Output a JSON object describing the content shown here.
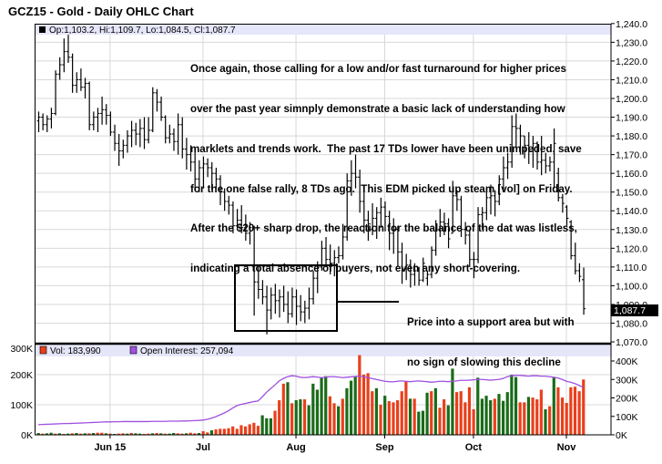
{
  "title": "GCZ15 - Gold - Daily OHLC Chart",
  "price_header": {
    "legend": "Op:1,103.2, Hi:1,109.7, Lo:1,084.5, Cl:1,087.7"
  },
  "volume_header": {
    "vol_legend": "Vol: 183,990",
    "oi_legend": "Open Interest: 257,094"
  },
  "last_price_label": "1,087.7",
  "annotation": {
    "lines": [
      "Once again, those calling for a low and/or fast turnaround for higher prices",
      "over the past year simnply demonstrate a basic lack of understanding how",
      "marklets and trends work.  The past 17 TDs lower have been unimpeded, save",
      "for the one false rally, 8 TDs ago.  This EDM picked up steam [vol] on Friday.",
      "After the $20+ sharp drop, the reaction for the balance of the dat was listless,",
      "indicating a total absence of buyers, not even any short-covering."
    ],
    "callout_lines": [
      "Price into a support area but with",
      "no sign of slowing this decline"
    ]
  },
  "colors": {
    "up_volume": "#1a6b1a",
    "down_volume": "#e8401c",
    "open_interest": "#a050e0",
    "header_bg": "#e6e6fa",
    "grid": "#d8d8d8"
  },
  "chart_data": [
    {
      "type": "ohlc",
      "ylim": [
        1070,
        1240
      ],
      "y_ticks": [
        "1,240.0",
        "1,230.0",
        "1,220.0",
        "1,210.0",
        "1,200.0",
        "1,190.0",
        "1,180.0",
        "1,170.0",
        "1,160.0",
        "1,150.0",
        "1,140.0",
        "1,130.0",
        "1,120.0",
        "1,110.0",
        "1,100.0",
        "1,090.0",
        "1,080.0",
        "1,070.0"
      ],
      "x_ticks": [
        {
          "label": "Jun 15",
          "bar_index": 17
        },
        {
          "label": "Jul",
          "bar_index": 39
        },
        {
          "label": "Aug",
          "bar_index": 61
        },
        {
          "label": "Sep",
          "bar_index": 82
        },
        {
          "label": "Oct",
          "bar_index": 103
        },
        {
          "label": "Nov",
          "bar_index": 125
        }
      ],
      "grid": true,
      "ohlc": [
        [
          1188,
          1193,
          1182,
          1190
        ],
        [
          1190,
          1192,
          1183,
          1186
        ],
        [
          1186,
          1191,
          1182,
          1189
        ],
        [
          1189,
          1195,
          1184,
          1192
        ],
        [
          1192,
          1215,
          1191,
          1213
        ],
        [
          1213,
          1222,
          1210,
          1218
        ],
        [
          1218,
          1232,
          1214,
          1225
        ],
        [
          1225,
          1234,
          1219,
          1222
        ],
        [
          1222,
          1224,
          1203,
          1207
        ],
        [
          1207,
          1214,
          1203,
          1210
        ],
        [
          1210,
          1216,
          1204,
          1206
        ],
        [
          1206,
          1211,
          1200,
          1208
        ],
        [
          1208,
          1209,
          1183,
          1186
        ],
        [
          1186,
          1193,
          1183,
          1190
        ],
        [
          1190,
          1195,
          1182,
          1192
        ],
        [
          1192,
          1201,
          1186,
          1194
        ],
        [
          1194,
          1197,
          1186,
          1191
        ],
        [
          1191,
          1193,
          1180,
          1182
        ],
        [
          1182,
          1186,
          1172,
          1176
        ],
        [
          1176,
          1181,
          1164,
          1172
        ],
        [
          1172,
          1178,
          1168,
          1175
        ],
        [
          1175,
          1183,
          1171,
          1180
        ],
        [
          1180,
          1188,
          1174,
          1183
        ],
        [
          1183,
          1187,
          1175,
          1181
        ],
        [
          1181,
          1189,
          1174,
          1184
        ],
        [
          1184,
          1190,
          1173,
          1178
        ],
        [
          1178,
          1190,
          1176,
          1183
        ],
        [
          1183,
          1206,
          1182,
          1203
        ],
        [
          1203,
          1205,
          1193,
          1198
        ],
        [
          1198,
          1201,
          1188,
          1190
        ],
        [
          1190,
          1191,
          1176,
          1179
        ],
        [
          1179,
          1186,
          1176,
          1181
        ],
        [
          1181,
          1184,
          1172,
          1177
        ],
        [
          1177,
          1192,
          1170,
          1186
        ],
        [
          1186,
          1190,
          1168,
          1173
        ],
        [
          1173,
          1179,
          1162,
          1170
        ],
        [
          1170,
          1175,
          1161,
          1166
        ],
        [
          1166,
          1172,
          1152,
          1157
        ],
        [
          1157,
          1167,
          1150,
          1163
        ],
        [
          1163,
          1169,
          1152,
          1165
        ],
        [
          1165,
          1168,
          1158,
          1163
        ],
        [
          1163,
          1166,
          1151,
          1160
        ],
        [
          1160,
          1163,
          1152,
          1157
        ],
        [
          1157,
          1159,
          1143,
          1150
        ],
        [
          1150,
          1152,
          1140,
          1145
        ],
        [
          1145,
          1148,
          1138,
          1143
        ],
        [
          1143,
          1145,
          1128,
          1132
        ],
        [
          1132,
          1141,
          1130,
          1135
        ],
        [
          1135,
          1143,
          1128,
          1131
        ],
        [
          1131,
          1138,
          1124,
          1128
        ],
        [
          1128,
          1134,
          1122,
          1131
        ],
        [
          1131,
          1132,
          1084,
          1102
        ],
        [
          1102,
          1110,
          1093,
          1098
        ],
        [
          1098,
          1103,
          1090,
          1094
        ],
        [
          1094,
          1100,
          1074,
          1087
        ],
        [
          1087,
          1099,
          1082,
          1095
        ],
        [
          1095,
          1101,
          1085,
          1092
        ],
        [
          1092,
          1098,
          1083,
          1094
        ],
        [
          1094,
          1100,
          1086,
          1090
        ],
        [
          1090,
          1097,
          1080,
          1085
        ],
        [
          1085,
          1099,
          1083,
          1094
        ],
        [
          1094,
          1098,
          1079,
          1089
        ],
        [
          1089,
          1095,
          1081,
          1086
        ],
        [
          1086,
          1092,
          1080,
          1088
        ],
        [
          1088,
          1099,
          1082,
          1093
        ],
        [
          1093,
          1108,
          1090,
          1104
        ],
        [
          1104,
          1113,
          1096,
          1110
        ],
        [
          1110,
          1124,
          1108,
          1120
        ],
        [
          1120,
          1126,
          1110,
          1114
        ],
        [
          1114,
          1122,
          1106,
          1112
        ],
        [
          1112,
          1119,
          1105,
          1115
        ],
        [
          1115,
          1121,
          1112,
          1116
        ],
        [
          1116,
          1133,
          1114,
          1126
        ],
        [
          1126,
          1160,
          1124,
          1156
        ],
        [
          1156,
          1167,
          1148,
          1160
        ],
        [
          1160,
          1170,
          1152,
          1158
        ],
        [
          1158,
          1162,
          1139,
          1145
        ],
        [
          1145,
          1150,
          1128,
          1135
        ],
        [
          1135,
          1140,
          1124,
          1130
        ],
        [
          1130,
          1144,
          1127,
          1136
        ],
        [
          1136,
          1142,
          1125,
          1139
        ],
        [
          1139,
          1147,
          1131,
          1142
        ],
        [
          1142,
          1145,
          1129,
          1137
        ],
        [
          1137,
          1140,
          1119,
          1128
        ],
        [
          1128,
          1136,
          1117,
          1130
        ],
        [
          1130,
          1132,
          1110,
          1118
        ],
        [
          1118,
          1123,
          1101,
          1109
        ],
        [
          1109,
          1117,
          1103,
          1111
        ],
        [
          1111,
          1114,
          1099,
          1106
        ],
        [
          1106,
          1112,
          1100,
          1108
        ],
        [
          1108,
          1110,
          1100,
          1103
        ],
        [
          1103,
          1115,
          1102,
          1112
        ],
        [
          1104,
          1108,
          1100,
          1106
        ],
        [
          1106,
          1121,
          1104,
          1119
        ],
        [
          1119,
          1135,
          1116,
          1130
        ],
        [
          1130,
          1141,
          1126,
          1134
        ],
        [
          1134,
          1139,
          1127,
          1133
        ],
        [
          1133,
          1136,
          1120,
          1125
        ],
        [
          1128,
          1156,
          1128,
          1148
        ],
        [
          1148,
          1151,
          1140,
          1146
        ],
        [
          1146,
          1148,
          1126,
          1130
        ],
        [
          1130,
          1134,
          1122,
          1127
        ],
        [
          1127,
          1130,
          1110,
          1114
        ],
        [
          1114,
          1118,
          1104,
          1114
        ],
        [
          1114,
          1142,
          1112,
          1138
        ],
        [
          1138,
          1142,
          1130,
          1139
        ],
        [
          1139,
          1152,
          1135,
          1147
        ],
        [
          1147,
          1154,
          1138,
          1148
        ],
        [
          1148,
          1151,
          1137,
          1145
        ],
        [
          1145,
          1159,
          1143,
          1157
        ],
        [
          1157,
          1169,
          1151,
          1163
        ],
        [
          1163,
          1171,
          1157,
          1166
        ],
        [
          1166,
          1191,
          1163,
          1185
        ],
        [
          1185,
          1192,
          1174,
          1184
        ],
        [
          1184,
          1186,
          1170,
          1180
        ],
        [
          1180,
          1180,
          1168,
          1175
        ],
        [
          1175,
          1182,
          1165,
          1172
        ],
        [
          1172,
          1180,
          1163,
          1176
        ],
        [
          1176,
          1177,
          1162,
          1166
        ],
        [
          1166,
          1180,
          1159,
          1167
        ],
        [
          1167,
          1171,
          1160,
          1164
        ],
        [
          1164,
          1169,
          1161,
          1166
        ],
        [
          1166,
          1184,
          1152,
          1176
        ],
        [
          1160,
          1163,
          1145,
          1147
        ],
        [
          1147,
          1149,
          1139,
          1144
        ],
        [
          1142,
          1143,
          1132,
          1136
        ],
        [
          1134,
          1135,
          1114,
          1116
        ],
        [
          1116,
          1123,
          1106,
          1108
        ],
        [
          1108,
          1112,
          1102,
          1105
        ],
        [
          1103.2,
          1109.7,
          1084.5,
          1087.7
        ]
      ]
    },
    {
      "type": "bar",
      "ylim": [
        0,
        300
      ],
      "y_ticks": [
        "300K",
        "200K",
        "100K",
        "0K"
      ],
      "y2lim": [
        0,
        400
      ],
      "y2_ticks": [
        "400K",
        "300K",
        "200K",
        "100K",
        "0K"
      ],
      "volume_k": [
        6,
        4,
        5,
        7,
        4,
        5,
        3,
        4,
        5,
        6,
        4,
        5,
        5,
        6,
        7,
        7,
        5,
        4,
        3,
        4,
        5,
        4,
        6,
        5,
        4,
        3,
        4,
        5,
        6,
        5,
        4,
        4,
        6,
        5,
        4,
        5,
        7,
        5,
        6,
        12,
        8,
        15,
        18,
        20,
        20,
        22,
        28,
        20,
        32,
        28,
        35,
        40,
        30,
        65,
        55,
        55,
        80,
        115,
        170,
        175,
        105,
        115,
        118,
        118,
        98,
        170,
        150,
        190,
        195,
        128,
        105,
        95,
        120,
        155,
        180,
        195,
        265,
        200,
        205,
        145,
        155,
        100,
        130,
        112,
        108,
        115,
        145,
        178,
        120,
        120,
        77,
        80,
        140,
        145,
        155,
        90,
        118,
        98,
        220,
        142,
        145,
        108,
        158,
        85,
        190,
        120,
        130,
        115,
        120,
        136,
        113,
        142,
        200,
        192,
        108,
        108,
        126,
        124,
        118,
        150,
        85,
        95,
        190,
        158,
        124,
        106,
        158,
        160,
        145,
        183.99
      ],
      "volume_direction": [
        "up",
        "down",
        "up",
        "up",
        "down",
        "up",
        "down",
        "up",
        "down",
        "up",
        "down",
        "up",
        "down",
        "up",
        "down",
        "down",
        "up",
        "down",
        "up",
        "down",
        "down",
        "up",
        "down",
        "up",
        "up",
        "down",
        "down",
        "up",
        "down",
        "up",
        "down",
        "up",
        "up",
        "down",
        "down",
        "up",
        "down",
        "down",
        "up",
        "down",
        "down",
        "up",
        "down",
        "down",
        "down",
        "down",
        "down",
        "down",
        "down",
        "down",
        "down",
        "down",
        "down",
        "up",
        "up",
        "up",
        "down",
        "down",
        "down",
        "up",
        "down",
        "up",
        "up",
        "down",
        "up",
        "up",
        "up",
        "up",
        "up",
        "down",
        "down",
        "up",
        "down",
        "up",
        "up",
        "up",
        "down",
        "down",
        "down",
        "down",
        "up",
        "down",
        "up",
        "down",
        "down",
        "down",
        "down",
        "down",
        "up",
        "down",
        "up",
        "up",
        "up",
        "down",
        "up",
        "down",
        "down",
        "up",
        "up",
        "down",
        "down",
        "down",
        "down",
        "down",
        "up",
        "up",
        "up",
        "up",
        "down",
        "up",
        "up",
        "up",
        "up",
        "up",
        "down",
        "down",
        "up",
        "down",
        "down",
        "down",
        "up",
        "down",
        "up",
        "down",
        "down",
        "down",
        "down",
        "down",
        "down",
        "down"
      ],
      "open_interest_k": [
        55,
        56,
        57,
        58,
        59,
        60,
        61,
        61,
        62,
        63,
        64,
        65,
        66,
        67,
        68,
        69,
        70,
        70,
        71,
        71,
        72,
        72,
        72,
        72,
        72,
        72,
        72,
        73,
        73,
        73,
        73,
        74,
        74,
        74,
        75,
        75,
        76,
        77,
        78,
        80,
        84,
        90,
        98,
        108,
        118,
        130,
        145,
        158,
        165,
        170,
        175,
        180,
        183,
        205,
        230,
        250,
        270,
        292,
        305,
        315,
        320,
        318,
        312,
        310,
        312,
        315,
        313,
        310,
        312,
        315,
        315,
        313,
        310,
        312,
        314,
        316,
        318,
        315,
        310,
        305,
        300,
        295,
        290,
        288,
        287,
        290,
        292,
        290,
        288,
        290,
        292,
        290,
        288,
        285,
        287,
        290,
        290,
        288,
        290,
        292,
        295,
        295,
        296,
        298,
        300,
        300,
        298,
        296,
        298,
        300,
        305,
        315,
        320,
        322,
        322,
        320,
        318,
        320,
        320,
        318,
        318,
        315,
        312,
        308,
        300,
        290,
        285,
        278,
        268,
        257.094
      ]
    }
  ]
}
